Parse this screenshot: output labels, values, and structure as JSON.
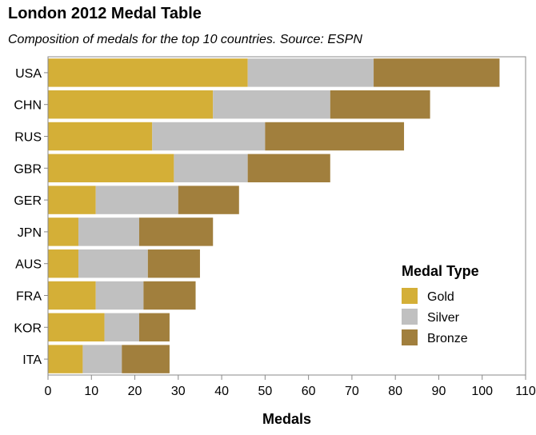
{
  "chart_data": {
    "type": "bar",
    "orientation": "horizontal",
    "stacked": true,
    "title": "London 2012 Medal Table",
    "subtitle": "Composition of medals for the top 10 countries. Source: ESPN",
    "xlabel": "Medals",
    "ylabel": "",
    "xlim": [
      0,
      110
    ],
    "x_ticks": [
      0,
      10,
      20,
      30,
      40,
      50,
      60,
      70,
      80,
      90,
      100,
      110
    ],
    "grid": false,
    "categories": [
      "USA",
      "CHN",
      "RUS",
      "GBR",
      "GER",
      "JPN",
      "AUS",
      "FRA",
      "KOR",
      "ITA"
    ],
    "series": [
      {
        "name": "Gold",
        "color": "#d4af37",
        "values": [
          46,
          38,
          24,
          29,
          11,
          7,
          7,
          11,
          13,
          8
        ]
      },
      {
        "name": "Silver",
        "color": "#c0c0c0",
        "values": [
          29,
          27,
          26,
          17,
          19,
          14,
          16,
          11,
          8,
          9
        ]
      },
      {
        "name": "Bronze",
        "color": "#a17f3d",
        "values": [
          29,
          23,
          32,
          19,
          14,
          17,
          12,
          12,
          7,
          11
        ]
      }
    ],
    "legend": {
      "title": "Medal Type",
      "position": "right-bottom"
    }
  }
}
